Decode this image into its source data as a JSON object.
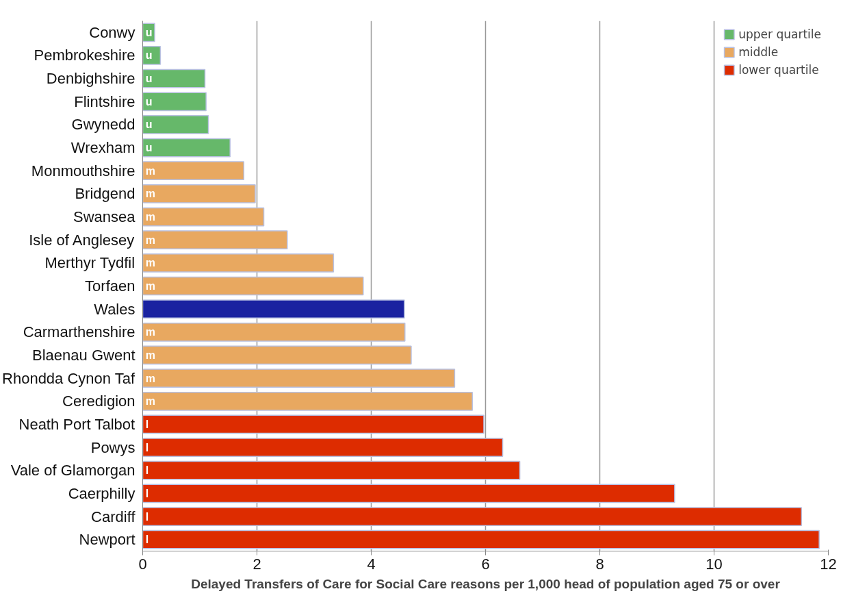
{
  "chart_data": {
    "type": "bar",
    "orientation": "horizontal",
    "xlabel": "Delayed Transfers of Care for Social Care reasons per 1,000 head of population aged 75 or over",
    "categories": [
      "Conwy",
      "Pembrokeshire",
      "Denbighshire",
      "Flintshire",
      "Gwynedd",
      "Wrexham",
      "Monmouthshire",
      "Bridgend",
      "Swansea",
      "Isle of Anglesey",
      "Merthyr Tydfil",
      "Torfaen",
      "Wales",
      "Carmarthenshire",
      "Blaenau Gwent",
      "Rhondda Cynon Taf",
      "Ceredigion",
      "Neath Port Talbot",
      "Powys",
      "Vale of Glamorgan",
      "Caerphilly",
      "Cardiff",
      "Newport"
    ],
    "series": [
      {
        "name": "upper quartile",
        "color": "#66b86a",
        "values": [
          0.21,
          0.31,
          1.09,
          1.11,
          1.15,
          1.53,
          null,
          null,
          null,
          null,
          null,
          null,
          null,
          null,
          null,
          null,
          null,
          null,
          null,
          null,
          null,
          null,
          null
        ],
        "value_labels": [
          "u",
          "u",
          "u",
          "u",
          "u",
          "u",
          null,
          null,
          null,
          null,
          null,
          null,
          null,
          null,
          null,
          null,
          null,
          null,
          null,
          null,
          null,
          null,
          null
        ]
      },
      {
        "name": "middle",
        "color": "#e8a860",
        "values": [
          null,
          null,
          null,
          null,
          null,
          null,
          1.77,
          1.97,
          2.12,
          2.53,
          3.34,
          3.86,
          null,
          4.59,
          4.7,
          5.46,
          5.77,
          null,
          null,
          null,
          null,
          null,
          null
        ],
        "value_labels": [
          null,
          null,
          null,
          null,
          null,
          null,
          "m",
          "m",
          "m",
          "m",
          "m",
          "m",
          null,
          "m",
          "m",
          "m",
          "m",
          null,
          null,
          null,
          null,
          null,
          null
        ]
      },
      {
        "name": "lower quartile",
        "color": "#dd2c00",
        "values": [
          null,
          null,
          null,
          null,
          null,
          null,
          null,
          null,
          null,
          null,
          null,
          null,
          null,
          null,
          null,
          null,
          null,
          5.97,
          6.3,
          6.6,
          9.31,
          11.53,
          11.84
        ],
        "value_labels": [
          null,
          null,
          null,
          null,
          null,
          null,
          null,
          null,
          null,
          null,
          null,
          null,
          null,
          null,
          null,
          null,
          null,
          "l",
          "l",
          "l",
          "l",
          "l",
          "l"
        ]
      },
      {
        "color": "#1a22a0",
        "values": [
          null,
          null,
          null,
          null,
          null,
          null,
          null,
          null,
          null,
          null,
          null,
          null,
          4.58,
          null,
          null,
          null,
          null,
          null,
          null,
          null,
          null,
          null,
          null
        ]
      }
    ],
    "xlim": [
      0,
      12
    ],
    "xticks": [
      0,
      2,
      4,
      6,
      8,
      10,
      12
    ],
    "grid": "x",
    "legend": "top right"
  }
}
